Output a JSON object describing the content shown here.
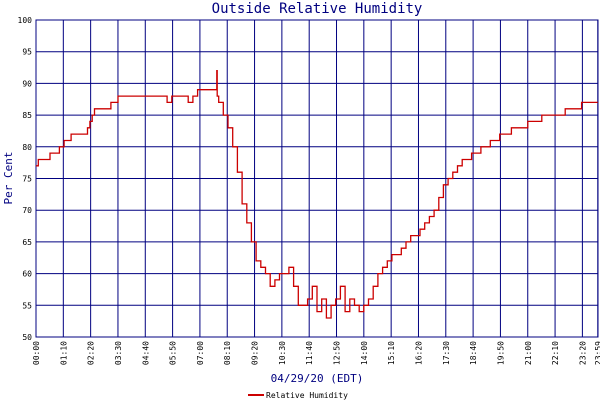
{
  "chart_data": {
    "type": "line",
    "title": "Outside Relative Humidity",
    "xlabel": "04/29/20 (EDT)",
    "ylabel": "Per Cent",
    "ylim": [
      50,
      100
    ],
    "yticks": [
      "50",
      "55",
      "60",
      "65",
      "70",
      "75",
      "80",
      "85",
      "90",
      "95",
      "100"
    ],
    "xticks": [
      "00:00",
      "01:10",
      "02:20",
      "03:30",
      "04:40",
      "05:50",
      "07:00",
      "08:10",
      "09:20",
      "10:30",
      "11:40",
      "12:50",
      "14:00",
      "15:10",
      "16:20",
      "17:30",
      "18:40",
      "19:50",
      "21:00",
      "22:10",
      "23:20"
    ],
    "xticks_extra": [
      "23:59"
    ],
    "legend_position": "bottom-center",
    "grid": true,
    "colors": {
      "grid": "#000080",
      "line": "#cc0000",
      "text": "#000080"
    },
    "series": [
      {
        "name": "Relative Humidity",
        "x_hours": [
          0.0,
          0.1,
          0.5,
          0.6,
          1.0,
          1.2,
          1.5,
          1.8,
          2.2,
          2.3,
          2.4,
          2.5,
          3.0,
          3.2,
          3.5,
          4.0,
          4.5,
          5.0,
          5.5,
          5.6,
          5.8,
          6.5,
          6.7,
          6.9,
          7.5,
          7.7,
          7.72,
          7.74,
          7.8,
          8.0,
          8.2,
          8.4,
          8.6,
          8.8,
          9.0,
          9.2,
          9.4,
          9.6,
          9.8,
          10.0,
          10.2,
          10.4,
          10.6,
          10.8,
          11.0,
          11.2,
          11.4,
          11.6,
          11.8,
          12.0,
          12.2,
          12.4,
          12.6,
          12.8,
          13.0,
          13.2,
          13.4,
          13.6,
          13.8,
          14.0,
          14.2,
          14.4,
          14.6,
          14.8,
          15.0,
          15.2,
          15.4,
          15.6,
          15.8,
          16.0,
          16.2,
          16.4,
          16.6,
          16.8,
          17.0,
          17.2,
          17.4,
          17.6,
          17.8,
          18.0,
          18.2,
          18.4,
          18.6,
          18.8,
          19.0,
          19.2,
          19.4,
          19.6,
          19.8,
          20.0,
          20.3,
          20.6,
          21.0,
          21.3,
          21.6,
          22.0,
          22.3,
          22.6,
          23.0,
          23.3,
          23.6,
          23.99
        ],
        "values": [
          77,
          78,
          78,
          79,
          80,
          81,
          82,
          82,
          83,
          84,
          85,
          86,
          86,
          87,
          88,
          88,
          88,
          88,
          88,
          87,
          88,
          87,
          88,
          89,
          89,
          89,
          92,
          88,
          87,
          85,
          83,
          80,
          76,
          71,
          68,
          65,
          62,
          61,
          60,
          58,
          59,
          60,
          60,
          61,
          58,
          55,
          55,
          56,
          58,
          54,
          56,
          53,
          55,
          56,
          58,
          54,
          56,
          55,
          54,
          55,
          56,
          58,
          60,
          61,
          62,
          63,
          63,
          64,
          65,
          66,
          66,
          67,
          68,
          69,
          70,
          72,
          74,
          75,
          76,
          77,
          78,
          78,
          79,
          79,
          80,
          80,
          81,
          81,
          82,
          82,
          83,
          83,
          84,
          84,
          85,
          85,
          85,
          86,
          86,
          87,
          87,
          87
        ]
      }
    ]
  }
}
